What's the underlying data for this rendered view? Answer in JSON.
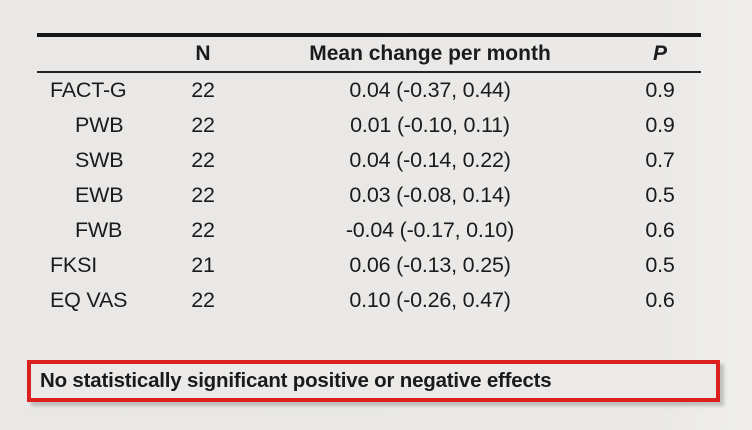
{
  "table": {
    "header": {
      "label": "",
      "n": "N",
      "mean_change": "Mean change per month",
      "p": "P"
    },
    "rows": [
      {
        "label": "FACT-G",
        "indent": false,
        "n": "22",
        "mean_change": "0.04 (-0.37, 0.44)",
        "p": "0.9"
      },
      {
        "label": "PWB",
        "indent": true,
        "n": "22",
        "mean_change": "0.01 (-0.10, 0.11)",
        "p": "0.9"
      },
      {
        "label": "SWB",
        "indent": true,
        "n": "22",
        "mean_change": "0.04 (-0.14, 0.22)",
        "p": "0.7"
      },
      {
        "label": "EWB",
        "indent": true,
        "n": "22",
        "mean_change": "0.03 (-0.08, 0.14)",
        "p": "0.5"
      },
      {
        "label": "FWB",
        "indent": true,
        "n": "22",
        "mean_change": "-0.04 (-0.17, 0.10)",
        "p": "0.6"
      },
      {
        "label": "FKSI",
        "indent": false,
        "n": "21",
        "mean_change": "0.06 (-0.13, 0.25)",
        "p": "0.5"
      },
      {
        "label": "EQ VAS",
        "indent": false,
        "n": "22",
        "mean_change": "0.10 (-0.26, 0.47)",
        "p": "0.6"
      }
    ]
  },
  "callout": {
    "text": "No statistically significant positive or negative effects",
    "border_color": "#dc1f1f"
  },
  "colors": {
    "background": "#eae9e7",
    "text": "#1b1b1b",
    "rule": "#161616",
    "callout_border": "#dc1f1f"
  }
}
